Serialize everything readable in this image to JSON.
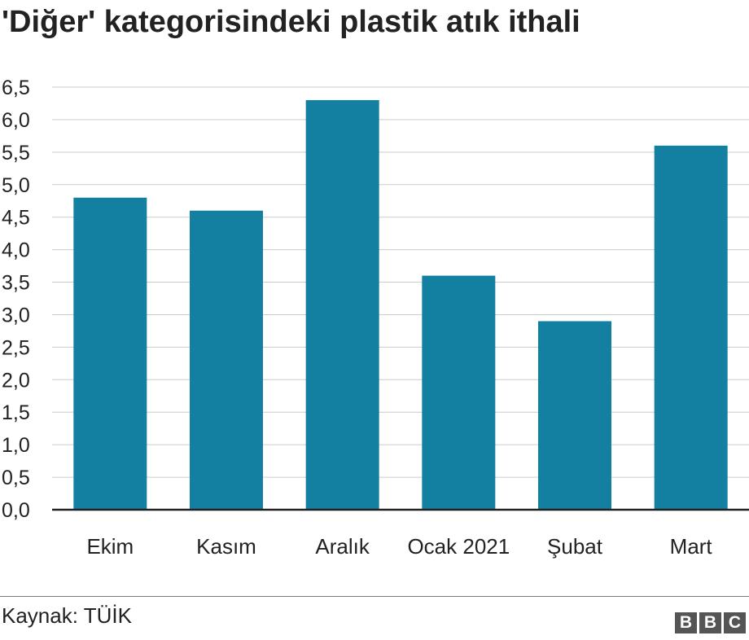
{
  "chart_data": {
    "type": "bar",
    "title": "'Diğer' kategorisindeki plastik atık ithali",
    "categories": [
      "Ekim",
      "Kasım",
      "Aralık",
      "Ocak 2021",
      "Şubat",
      "Mart"
    ],
    "values": [
      4.8,
      4.6,
      6.3,
      3.6,
      2.9,
      5.6
    ],
    "ylim": [
      0,
      6.5
    ],
    "yticks": [
      0,
      0.5,
      1.0,
      1.5,
      2.0,
      2.5,
      3.0,
      3.5,
      4.0,
      4.5,
      5.0,
      5.5,
      6.0,
      6.5
    ],
    "ytick_labels": [
      "0,0",
      "0,5",
      "1,0",
      "1,5",
      "2,0",
      "2,5",
      "3,0",
      "3,5",
      "4,0",
      "4,5",
      "5,0",
      "5,5",
      "6,0",
      "6,5"
    ],
    "grid": true,
    "bar_color": "#1380a1"
  },
  "footer": {
    "source": "Kaynak: TÜİK",
    "logo_letters": [
      "B",
      "B",
      "C"
    ]
  }
}
